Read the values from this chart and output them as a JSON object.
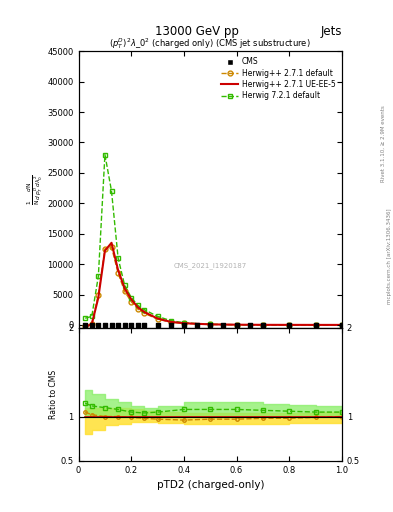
{
  "title_top": "13000 GeV pp",
  "title_right": "Jets",
  "plot_title": "$(p_T^D)^2\\lambda\\_0^2$ (charged only) (CMS jet substructure)",
  "xlabel": "pTD2 (charged-only)",
  "watermark": "CMS_2021_I1920187",
  "rivet_label": "Rivet 3.1.10, ≥ 2.9M events",
  "arxiv_label": "mcplots.cern.ch [arXiv:1306.3436]",
  "xlim": [
    0,
    1
  ],
  "ylim": [
    -500,
    45000
  ],
  "ratio_ylim": [
    0.5,
    2.0
  ],
  "yticks": [
    0,
    5000,
    10000,
    15000,
    20000,
    25000,
    30000,
    35000,
    40000,
    45000
  ],
  "xticks": [
    0.0,
    0.2,
    0.4,
    0.6,
    0.8,
    1.0
  ],
  "cms_x": [
    0.025,
    0.05,
    0.075,
    0.1,
    0.125,
    0.15,
    0.175,
    0.2,
    0.225,
    0.25,
    0.3,
    0.35,
    0.4,
    0.45,
    0.5,
    0.55,
    0.6,
    0.65,
    0.7,
    0.8,
    0.9,
    1.0
  ],
  "cms_y": [
    50,
    50,
    50,
    50,
    50,
    50,
    50,
    50,
    50,
    50,
    50,
    50,
    50,
    50,
    50,
    50,
    50,
    50,
    50,
    50,
    50,
    50
  ],
  "hw271def_x": [
    0.025,
    0.05,
    0.075,
    0.1,
    0.125,
    0.15,
    0.175,
    0.2,
    0.225,
    0.25,
    0.3,
    0.35,
    0.4,
    0.5,
    0.6,
    0.7,
    0.8,
    0.9,
    1.0
  ],
  "hw271def_y": [
    -200,
    200,
    5000,
    12500,
    12800,
    8500,
    5500,
    3800,
    2600,
    1900,
    950,
    450,
    250,
    80,
    30,
    10,
    5,
    2,
    1
  ],
  "hw271def_color": "#cc8800",
  "hw271def_label": "Herwig++ 2.7.1 default",
  "hw271ue_x": [
    0.025,
    0.05,
    0.075,
    0.1,
    0.125,
    0.15,
    0.175,
    0.2,
    0.225,
    0.25,
    0.3,
    0.35,
    0.4,
    0.5,
    0.6,
    0.7,
    0.8,
    0.9,
    1.0
  ],
  "hw271ue_y": [
    -300,
    100,
    4500,
    12200,
    13500,
    9000,
    6000,
    4200,
    2900,
    2100,
    1050,
    500,
    280,
    90,
    35,
    12,
    6,
    2,
    1
  ],
  "hw271ue_color": "#cc0000",
  "hw271ue_label": "Herwig++ 2.7.1 UE-EE-5",
  "hw721_x": [
    0.025,
    0.05,
    0.075,
    0.1,
    0.125,
    0.15,
    0.175,
    0.2,
    0.225,
    0.25,
    0.3,
    0.35,
    0.4,
    0.5,
    0.6,
    0.7,
    0.8,
    0.9,
    1.0
  ],
  "hw721_y": [
    1100,
    1400,
    8000,
    28000,
    22000,
    11000,
    6500,
    4500,
    3200,
    2500,
    1400,
    700,
    350,
    100,
    40,
    15,
    7,
    3,
    1
  ],
  "hw721_color": "#33bb00",
  "hw721_label": "Herwig 7.2.1 default",
  "ratio_x": [
    0.025,
    0.05,
    0.1,
    0.15,
    0.2,
    0.25,
    0.3,
    0.4,
    0.5,
    0.6,
    0.7,
    0.8,
    0.9,
    1.0
  ],
  "ratio_hw271def": [
    1.05,
    1.02,
    1.0,
    1.0,
    0.99,
    0.98,
    0.97,
    0.96,
    0.97,
    0.97,
    0.98,
    0.98,
    0.99,
    1.0
  ],
  "ratio_hw271ue": [
    1.0,
    1.0,
    1.0,
    1.0,
    1.0,
    1.0,
    1.0,
    1.0,
    1.0,
    1.0,
    1.0,
    1.0,
    1.0,
    1.0
  ],
  "ratio_hw721": [
    1.15,
    1.12,
    1.1,
    1.08,
    1.05,
    1.04,
    1.05,
    1.08,
    1.08,
    1.08,
    1.07,
    1.06,
    1.05,
    1.05
  ],
  "band_yellow_lo": [
    0.8,
    0.85,
    0.9,
    0.92,
    0.94,
    0.94,
    0.93,
    0.92,
    0.92,
    0.92,
    0.92,
    0.93,
    0.93,
    0.93
  ],
  "band_yellow_hi": [
    1.1,
    1.1,
    1.1,
    1.1,
    1.08,
    1.06,
    1.05,
    1.04,
    1.04,
    1.04,
    1.04,
    1.04,
    1.05,
    1.05
  ],
  "band_green_lo": [
    1.0,
    1.0,
    1.0,
    1.0,
    1.0,
    1.0,
    1.0,
    1.0,
    1.0,
    1.0,
    1.0,
    1.0,
    1.0,
    1.0
  ],
  "band_green_hi": [
    1.3,
    1.25,
    1.2,
    1.16,
    1.12,
    1.1,
    1.12,
    1.16,
    1.16,
    1.16,
    1.14,
    1.13,
    1.12,
    1.12
  ],
  "band_hw271_color": "#ffe033",
  "band_hw721_color": "#88ee66",
  "cms_color": "#000000",
  "cms_label": "CMS"
}
